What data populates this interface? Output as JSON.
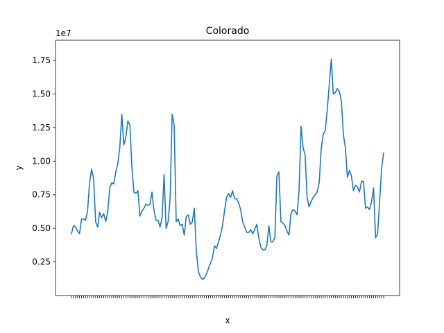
{
  "chart_data": {
    "type": "line",
    "title": "Colorado",
    "xlabel": "x",
    "ylabel": "y",
    "y_multiplier_label": "1e7",
    "ylim": [
      0,
      19000000
    ],
    "yticks": [
      2500000,
      5000000,
      7500000,
      10000000,
      12500000,
      15000000,
      17500000
    ],
    "ytick_labels": [
      "0.25",
      "0.50",
      "0.75",
      "1.00",
      "1.25",
      "1.50",
      "1.75"
    ],
    "grid": false,
    "legend": "none",
    "color": "#1f77b4",
    "series": [
      {
        "values": [
          4600000,
          5200000,
          5100000,
          4800000,
          4600000,
          5700000,
          5700000,
          5600000,
          6300000,
          8400000,
          9400000,
          8700000,
          5500000,
          5100000,
          6200000,
          5800000,
          6100000,
          5500000,
          6200000,
          8000000,
          8400000,
          8300000,
          9200000,
          9800000,
          11000000,
          13500000,
          11200000,
          11800000,
          13000000,
          12700000,
          9600000,
          7700000,
          7600000,
          7800000,
          5900000,
          6300000,
          6500000,
          6800000,
          6700000,
          6800000,
          7700000,
          6300000,
          5600000,
          5600000,
          5100000,
          5800000,
          9000000,
          5000000,
          5500000,
          7300000,
          13500000,
          12700000,
          5500000,
          5700000,
          5200000,
          5300000,
          4500000,
          5900000,
          6000000,
          5300000,
          5500000,
          6500000,
          3300000,
          1800000,
          1400000,
          1200000,
          1300000,
          1600000,
          2000000,
          2400000,
          2800000,
          3700000,
          3500000,
          4000000,
          4500000,
          5200000,
          6300000,
          7300000,
          7600000,
          7300000,
          7800000,
          7200000,
          7200000,
          6900000,
          6400000,
          5500000,
          5100000,
          4700000,
          4700000,
          4900000,
          4600000,
          4900000,
          5300000,
          4300000,
          3600000,
          3400000,
          3400000,
          3700000,
          5200000,
          4000000,
          4000000,
          4300000,
          8900000,
          9200000,
          5500000,
          5400000,
          5200000,
          4800000,
          4500000,
          6100000,
          6400000,
          6300000,
          6000000,
          7800000,
          12600000,
          11000000,
          10500000,
          7300000,
          6600000,
          7000000,
          7300000,
          7500000,
          7700000,
          8400000,
          10900000,
          12000000,
          12300000,
          13800000,
          15700000,
          17600000,
          15000000,
          15100000,
          15400000,
          15200000,
          14500000,
          12000000,
          11000000,
          8800000,
          9300000,
          8900000,
          7800000,
          8200000,
          8100000,
          7700000,
          8500000,
          8500000,
          6500000,
          6600000,
          6400000,
          7000000,
          8000000,
          4300000,
          4600000,
          7000000,
          9500000,
          10600000
        ]
      }
    ]
  }
}
